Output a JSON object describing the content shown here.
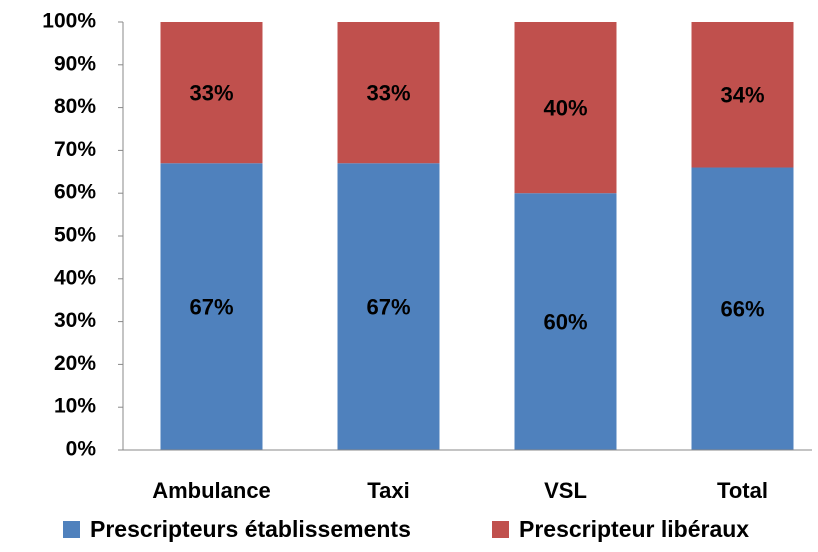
{
  "chart_data": {
    "type": "stacked_bar",
    "categories": [
      "Ambulance",
      "Taxi",
      "VSL",
      "Total"
    ],
    "series": [
      {
        "name": "Prescripteurs établissements",
        "color": "#4f81bd",
        "values": [
          67,
          67,
          60,
          66
        ],
        "value_labels": [
          "67%",
          "67%",
          "60%",
          "66%"
        ]
      },
      {
        "name": "Prescripteur libéraux",
        "color": "#c0504d",
        "values": [
          33,
          33,
          40,
          34
        ],
        "value_labels": [
          "33%",
          "33%",
          "40%",
          "34%"
        ]
      }
    ],
    "ylim": [
      0,
      100
    ],
    "yticks": [
      {
        "value": 0,
        "label": "0%"
      },
      {
        "value": 10,
        "label": "10%"
      },
      {
        "value": 20,
        "label": "20%"
      },
      {
        "value": 30,
        "label": "30%"
      },
      {
        "value": 40,
        "label": "40%"
      },
      {
        "value": 50,
        "label": "50%"
      },
      {
        "value": 60,
        "label": "60%"
      },
      {
        "value": 70,
        "label": "70%"
      },
      {
        "value": 80,
        "label": "80%"
      },
      {
        "value": 90,
        "label": "90%"
      },
      {
        "value": 100,
        "label": "100%"
      }
    ],
    "grid": false,
    "legend": "bottom"
  }
}
